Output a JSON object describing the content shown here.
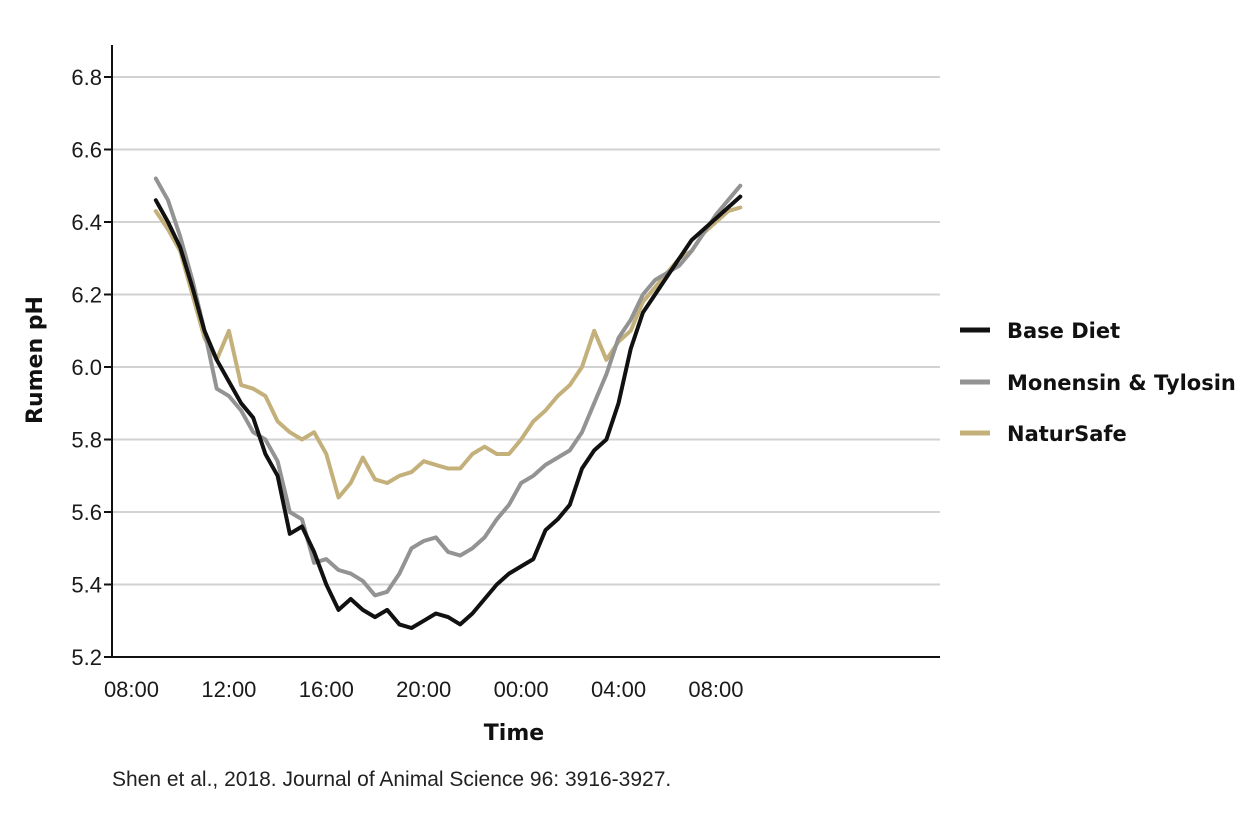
{
  "colors": {
    "base_diet": "#111111",
    "monensin_tylosin": "#939393",
    "natursafe": "#c4b07a",
    "grid": "#d2d2d2",
    "axis": "#111111"
  },
  "source_text": "Shen et al., 2018. Journal of Animal Science 96: 3916-3927.",
  "chart_data": {
    "type": "line",
    "title": "",
    "xlabel": "Time",
    "ylabel": "Rumen pH",
    "x_unit": "hours from 08:00 (day 1)",
    "xlim": [
      -0.8,
      33.2
    ],
    "ylim": [
      5.2,
      6.8
    ],
    "x_ticks": [
      0,
      4,
      8,
      12,
      16,
      20,
      24
    ],
    "x_tick_labels": [
      "08:00",
      "12:00",
      "16:00",
      "20:00",
      "00:00",
      "04:00",
      "08:00"
    ],
    "y_ticks": [
      5.2,
      5.4,
      5.6,
      5.8,
      6.0,
      6.2,
      6.4,
      6.6,
      6.8
    ],
    "y_tick_labels": [
      "5.2",
      "5.4",
      "5.6",
      "5.8",
      "6.0",
      "6.2",
      "6.4",
      "6.6",
      "6.8"
    ],
    "grid": true,
    "legend_position": "right",
    "series": [
      {
        "name": "Base Diet",
        "x": [
          1.0,
          1.5,
          2.0,
          2.5,
          3.0,
          3.5,
          4.0,
          4.5,
          5.0,
          5.5,
          6.0,
          6.5,
          7.0,
          7.5,
          8.0,
          8.5,
          9.0,
          9.5,
          10.0,
          10.5,
          11.0,
          11.5,
          12.0,
          12.5,
          13.0,
          13.5,
          14.0,
          14.5,
          15.0,
          15.5,
          16.0,
          16.5,
          17.0,
          17.5,
          18.0,
          18.5,
          19.0,
          19.5,
          20.0,
          20.5,
          21.0,
          21.5,
          22.0,
          22.5,
          23.0,
          23.5,
          24.0,
          24.5,
          25.0
        ],
        "values": [
          6.46,
          6.4,
          6.33,
          6.22,
          6.1,
          6.02,
          5.96,
          5.9,
          5.86,
          5.76,
          5.7,
          5.54,
          5.56,
          5.49,
          5.4,
          5.33,
          5.36,
          5.33,
          5.31,
          5.33,
          5.29,
          5.28,
          5.3,
          5.32,
          5.31,
          5.29,
          5.32,
          5.36,
          5.4,
          5.43,
          5.45,
          5.47,
          5.55,
          5.58,
          5.62,
          5.72,
          5.77,
          5.8,
          5.9,
          6.05,
          6.15,
          6.2,
          6.25,
          6.3,
          6.35,
          6.38,
          6.41,
          6.44,
          6.47
        ]
      },
      {
        "name": "Monensin & Tylosin",
        "x": [
          1.0,
          1.5,
          2.0,
          2.5,
          3.0,
          3.5,
          4.0,
          4.5,
          5.0,
          5.5,
          6.0,
          6.5,
          7.0,
          7.5,
          8.0,
          8.5,
          9.0,
          9.5,
          10.0,
          10.5,
          11.0,
          11.5,
          12.0,
          12.5,
          13.0,
          13.5,
          14.0,
          14.5,
          15.0,
          15.5,
          16.0,
          16.5,
          17.0,
          17.5,
          18.0,
          18.5,
          19.0,
          19.5,
          20.0,
          20.5,
          21.0,
          21.5,
          22.0,
          22.5,
          23.0,
          23.5,
          24.0,
          24.5,
          25.0
        ],
        "values": [
          6.52,
          6.46,
          6.36,
          6.24,
          6.1,
          5.94,
          5.92,
          5.88,
          5.82,
          5.8,
          5.74,
          5.6,
          5.58,
          5.46,
          5.47,
          5.44,
          5.43,
          5.41,
          5.37,
          5.38,
          5.43,
          5.5,
          5.52,
          5.53,
          5.49,
          5.48,
          5.5,
          5.53,
          5.58,
          5.62,
          5.68,
          5.7,
          5.73,
          5.75,
          5.77,
          5.82,
          5.9,
          5.98,
          6.08,
          6.13,
          6.2,
          6.24,
          6.26,
          6.28,
          6.32,
          6.37,
          6.42,
          6.46,
          6.5
        ]
      },
      {
        "name": "NaturSafe",
        "x": [
          1.0,
          1.5,
          2.0,
          2.5,
          3.0,
          3.5,
          4.0,
          4.5,
          5.0,
          5.5,
          6.0,
          6.5,
          7.0,
          7.5,
          8.0,
          8.5,
          9.0,
          9.5,
          10.0,
          10.5,
          11.0,
          11.5,
          12.0,
          12.5,
          13.0,
          13.5,
          14.0,
          14.5,
          15.0,
          15.5,
          16.0,
          16.5,
          17.0,
          17.5,
          18.0,
          18.5,
          19.0,
          19.5,
          20.0,
          20.5,
          21.0,
          21.5,
          22.0,
          22.5,
          23.0,
          23.5,
          24.0,
          24.5,
          25.0
        ],
        "values": [
          6.43,
          6.38,
          6.32,
          6.2,
          6.08,
          6.02,
          6.1,
          5.95,
          5.94,
          5.92,
          5.85,
          5.82,
          5.8,
          5.82,
          5.76,
          5.64,
          5.68,
          5.75,
          5.69,
          5.68,
          5.7,
          5.71,
          5.74,
          5.73,
          5.72,
          5.72,
          5.76,
          5.78,
          5.76,
          5.76,
          5.8,
          5.85,
          5.88,
          5.92,
          5.95,
          6.0,
          6.1,
          6.02,
          6.07,
          6.1,
          6.18,
          6.22,
          6.26,
          6.3,
          6.32,
          6.37,
          6.4,
          6.43,
          6.44
        ]
      }
    ]
  }
}
